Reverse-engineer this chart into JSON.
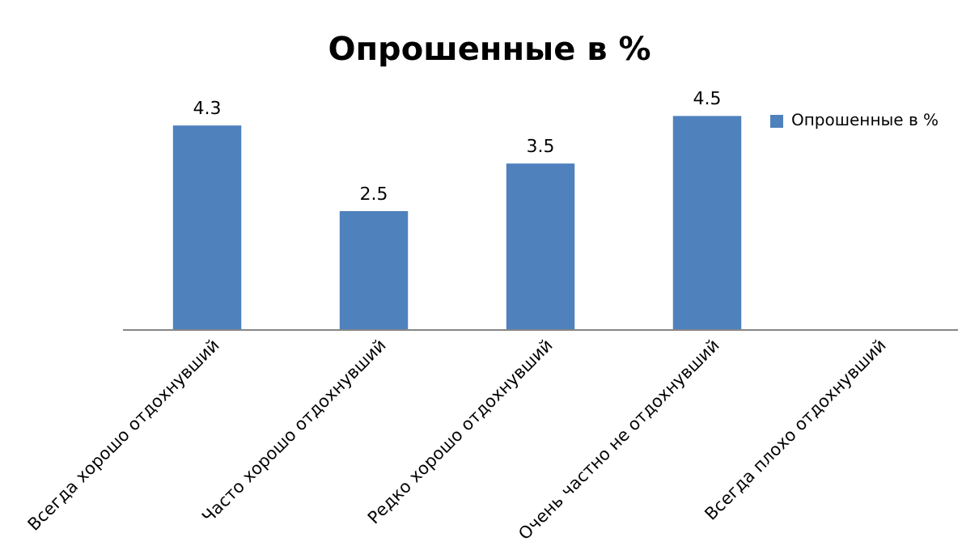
{
  "chart_data": {
    "type": "bar",
    "title": "Опрошенные в %",
    "categories": [
      "Всегда хорошо отдохнувший",
      "Часто хорошо отдохнувший",
      "Редко хорошо отдохнувший",
      "Очень частно не отдохнувший",
      "Всегда плохо отдохнувший"
    ],
    "series": [
      {
        "name": "Опрошенные в %",
        "color": "#4f81bd",
        "values": [
          4.3,
          2.5,
          3.5,
          4.5,
          null
        ]
      }
    ],
    "data_labels": true,
    "legend": "right"
  }
}
